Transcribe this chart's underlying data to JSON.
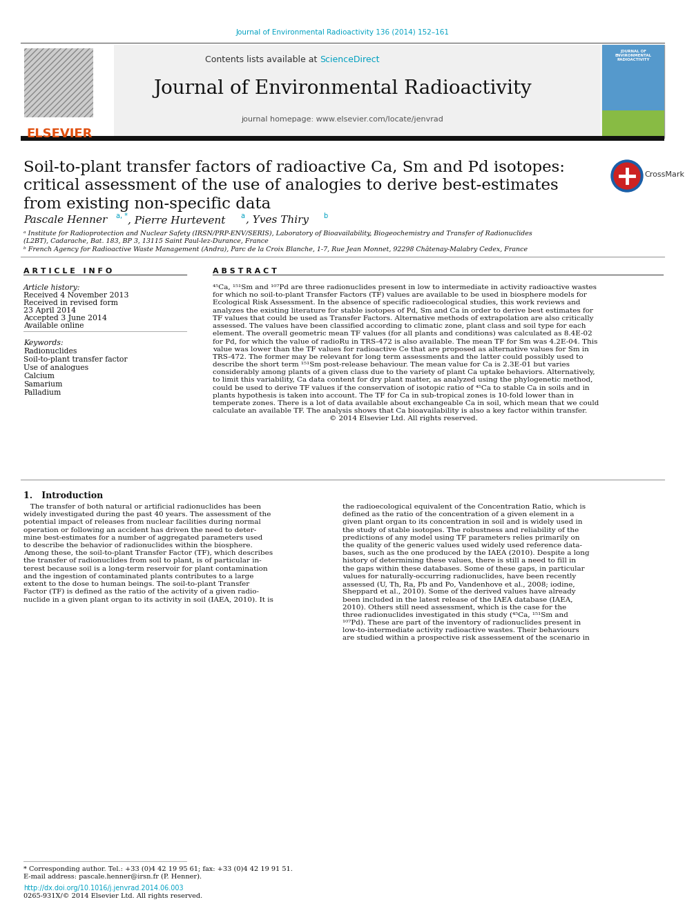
{
  "journal_ref": "Journal of Environmental Radioactivity 136 (2014) 152–161",
  "header_text": "Contents lists available at",
  "sciencedirect": "ScienceDirect",
  "journal_name": "Journal of Environmental Radioactivity",
  "journal_homepage": "journal homepage: www.elsevier.com/locate/jenvrad",
  "paper_title_line1": "Soil-to-plant transfer factors of radioactive Ca, Sm and Pd isotopes:",
  "paper_title_line2": "critical assessment of the use of analogies to derive best-estimates",
  "paper_title_line3": "from existing non-specific data",
  "article_info_title": "A R T I C L E   I N F O",
  "abstract_title": "A B S T R A C T",
  "article_history_label": "Article history:",
  "received1": "Received 4 November 2013",
  "received2": "Received in revised form",
  "received2b": "23 April 2014",
  "accepted": "Accepted 3 June 2014",
  "available": "Available online",
  "keywords_label": "Keywords:",
  "keywords": [
    "Radionuclides",
    "Soil-to-plant transfer factor",
    "Use of analogues",
    "Calcium",
    "Samarium",
    "Palladium"
  ],
  "abstract_lines": [
    "⁴⁵Ca, ¹⁵¹Sm and ¹⁰⁷Pd are three radionuclides present in low to intermediate in activity radioactive wastes",
    "for which no soil-to-plant Transfer Factors (TF) values are available to be used in biosphere models for",
    "Ecological Risk Assessment. In the absence of specific radioecological studies, this work reviews and",
    "analyzes the existing literature for stable isotopes of Pd, Sm and Ca in order to derive best estimates for",
    "TF values that could be used as Transfer Factors. Alternative methods of extrapolation are also critically",
    "assessed. The values have been classified according to climatic zone, plant class and soil type for each",
    "element. The overall geometric mean TF values (for all plants and conditions) was calculated as 8.4E-02",
    "for Pd, for which the value of radioRu in TRS-472 is also available. The mean TF for Sm was 4.2E-04. This",
    "value was lower than the TF values for radioactive Ce that are proposed as alternative values for Sm in",
    "TRS-472. The former may be relevant for long term assessments and the latter could possibly used to",
    "describe the short term ¹⁵¹Sm post-release behaviour. The mean value for Ca is 2.3E-01 but varies",
    "considerably among plants of a given class due to the variety of plant Ca uptake behaviors. Alternatively,",
    "to limit this variability, Ca data content for dry plant matter, as analyzed using the phylogenetic method,",
    "could be used to derive TF values if the conservation of isotopic ratio of ⁴⁵Ca to stable Ca in soils and in",
    "plants hypothesis is taken into account. The TF for Ca in sub-tropical zones is 10-fold lower than in",
    "temperate zones. There is a lot of data available about exchangeable Ca in soil, which mean that we could",
    "calculate an available TF. The analysis shows that Ca bioavailability is also a key factor within transfer.",
    "                                                    © 2014 Elsevier Ltd. All rights reserved."
  ],
  "intro_heading": "1.   Introduction",
  "intro_col1_lines": [
    "   The transfer of both natural or artificial radionuclides has been",
    "widely investigated during the past 40 years. The assessment of the",
    "potential impact of releases from nuclear facilities during normal",
    "operation or following an accident has driven the need to deter-",
    "mine best-estimates for a number of aggregated parameters used",
    "to describe the behavior of radionuclides within the biosphere.",
    "Among these, the soil-to-plant Transfer Factor (TF), which describes",
    "the transfer of radionuclides from soil to plant, is of particular in-",
    "terest because soil is a long-term reservoir for plant contamination",
    "and the ingestion of contaminated plants contributes to a large",
    "extent to the dose to human beings. The soil-to-plant Transfer",
    "Factor (TF) is defined as the ratio of the activity of a given radio-",
    "nuclide in a given plant organ to its activity in soil (IAEA, 2010). It is"
  ],
  "intro_col2_lines": [
    "the radioecological equivalent of the Concentration Ratio, which is",
    "defined as the ratio of the concentration of a given element in a",
    "given plant organ to its concentration in soil and is widely used in",
    "the study of stable isotopes. The robustness and reliability of the",
    "predictions of any model using TF parameters relies primarily on",
    "the quality of the generic values used widely used reference data-",
    "bases, such as the one produced by the IAEA (2010). Despite a long",
    "history of determining these values, there is still a need to fill in",
    "the gaps within these databases. Some of these gaps, in particular",
    "values for naturally-occurring radionuclides, have been recently",
    "assessed (U, Th, Ra, Pb and Po, Vandenhove et al., 2008; iodine,",
    "Sheppard et al., 2010). Some of the derived values have already",
    "been included in the latest release of the IAEA database (IAEA,",
    "2010). Others still need assessment, which is the case for the",
    "three radionuclides investigated in this study (⁴⁵Ca, ¹⁵¹Sm and",
    "¹⁰⁷Pd). These are part of the inventory of radionuclides present in",
    "low-to-intermediate activity radioactive wastes. Their behaviours",
    "are studied within a prospective risk assessement of the scenario in"
  ],
  "footnote_corresponding": "* Corresponding author. Tel.: +33 (0)4 42 19 95 61; fax: +33 (0)4 42 19 91 51.",
  "footnote_email": "E-mail address: pascale.henner@irsn.fr (P. Henner).",
  "doi": "http://dx.doi.org/10.1016/j.jenvrad.2014.06.003",
  "issn": "0265-931X/© 2014 Elsevier Ltd. All rights reserved.",
  "bg_color": "#ffffff",
  "cyan_color": "#00a0c0",
  "black_bar_color": "#111111",
  "author_name": "Pascale Henner",
  "author2_name": "Pierre Hurtevent",
  "author3_name": "Yves Thiry",
  "affil_a_line1": "ᵃ Institute for Radioprotection and Nuclear Safety (IRSN/PRP-ENV/SERIS), Laboratory of Bioavailability, Biogeochemistry and Transfer of Radionuclides",
  "affil_a_line2": "(L2BT), Cadarache, Bat. 183, BP 3, 13115 Saint Paul-lez-Durance, France",
  "affil_b_line1": "ᵇ French Agency for Radioactive Waste Management (Andra), Parc de la Croix Blanche, 1-7, Rue Jean Monnet, 92298 Châtenay-Malabry Cedex, France"
}
